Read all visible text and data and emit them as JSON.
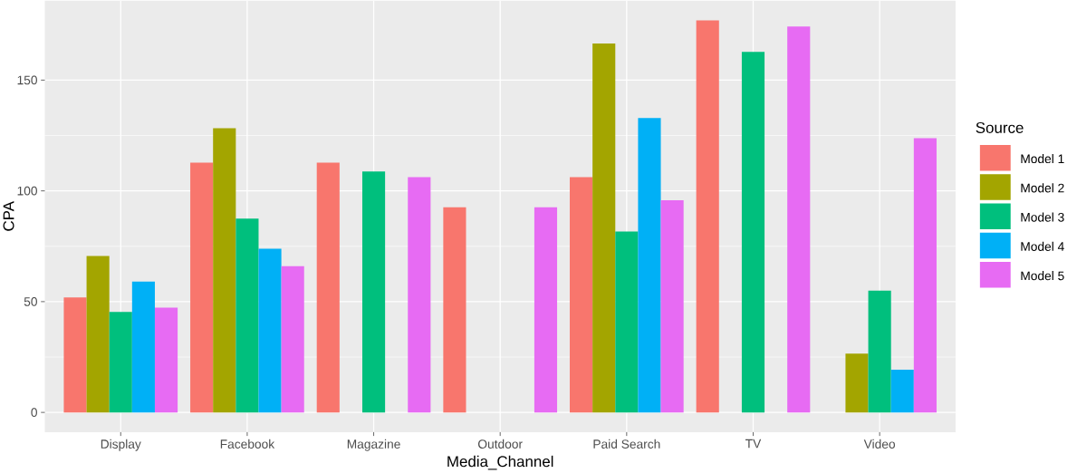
{
  "chart_data": {
    "type": "bar",
    "xlabel": "Media_Channel",
    "ylabel": "CPA",
    "legend_title": "Source",
    "categories": [
      "Display",
      "Facebook",
      "Magazine",
      "Outdoor",
      "Paid Search",
      "TV",
      "Video"
    ],
    "series": [
      {
        "name": "Model 1",
        "color": "#f8766d",
        "values": [
          51.9,
          112.7,
          112.7,
          92.6,
          106.2,
          177.0,
          null
        ]
      },
      {
        "name": "Model 2",
        "color": "#a3a500",
        "values": [
          70.6,
          128.3,
          null,
          null,
          166.5,
          null,
          26.5
        ]
      },
      {
        "name": "Model 3",
        "color": "#00bf7d",
        "values": [
          45.4,
          87.5,
          108.8,
          null,
          81.7,
          162.7,
          55.0
        ]
      },
      {
        "name": "Model 4",
        "color": "#00b0f6",
        "values": [
          59.1,
          73.9,
          null,
          null,
          132.9,
          null,
          19.3
        ]
      },
      {
        "name": "Model 5",
        "color": "#e76bf3",
        "values": [
          47.3,
          66.0,
          106.2,
          92.6,
          95.8,
          174.2,
          123.8
        ]
      }
    ],
    "ylim": [
      -8.9,
      185.9
    ],
    "yticks": [
      0,
      50,
      100,
      150
    ],
    "grid": true,
    "legend": "right"
  }
}
